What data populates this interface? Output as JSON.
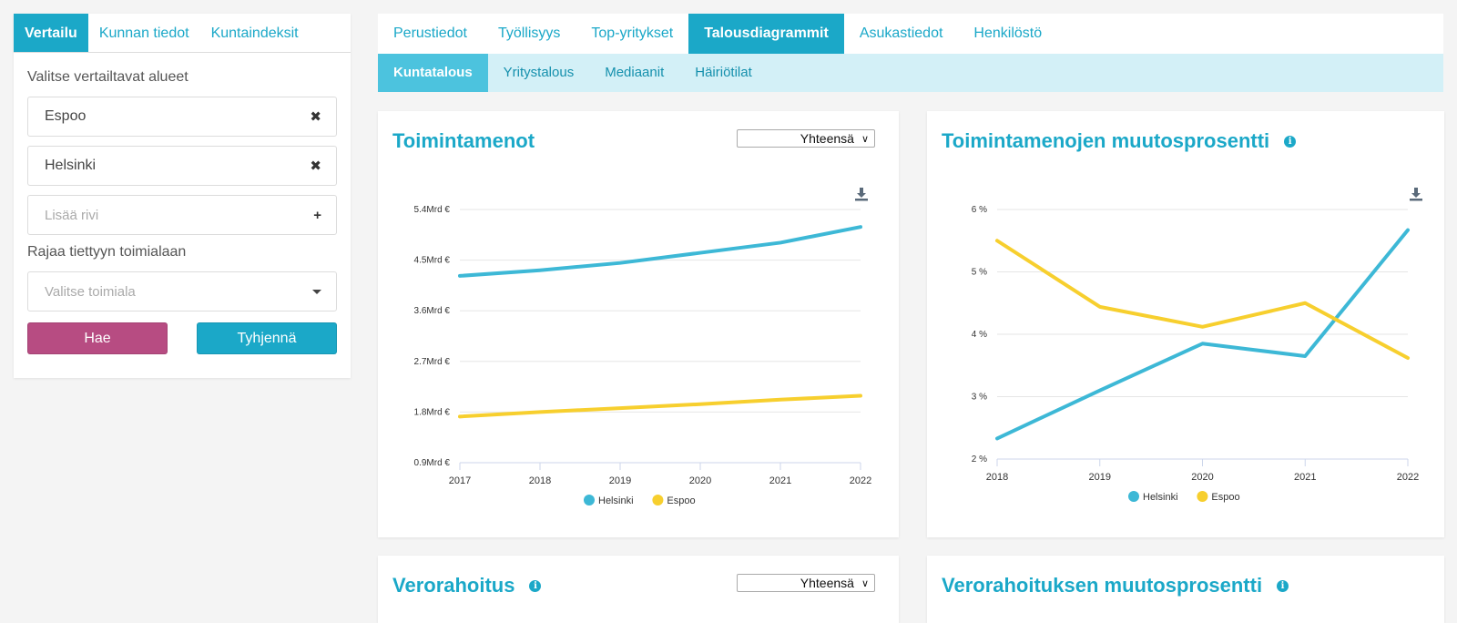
{
  "left_panel": {
    "tabs": [
      {
        "label": "Vertailu",
        "active": true
      },
      {
        "label": "Kunnan tiedot",
        "active": false
      },
      {
        "label": "Kuntaindeksit",
        "active": false
      }
    ],
    "areas_label": "Valitse vertailtavat alueet",
    "areas": [
      "Espoo",
      "Helsinki"
    ],
    "add_placeholder": "Lisää rivi",
    "industry_label": "Rajaa tiettyyn toimialaan",
    "industry_placeholder": "Valitse toimiala",
    "search_button": "Hae",
    "clear_button": "Tyhjennä"
  },
  "main_tabs": [
    {
      "label": "Perustiedot",
      "active": false
    },
    {
      "label": "Työllisyys",
      "active": false
    },
    {
      "label": "Top-yritykset",
      "active": false
    },
    {
      "label": "Talousdiagrammit",
      "active": true
    },
    {
      "label": "Asukastiedot",
      "active": false
    },
    {
      "label": "Henkilöstö",
      "active": false
    }
  ],
  "sub_tabs": [
    {
      "label": "Kuntatalous",
      "active": true
    },
    {
      "label": "Yritystalous",
      "active": false
    },
    {
      "label": "Mediaanit",
      "active": false
    },
    {
      "label": "Häiriötilat",
      "active": false
    }
  ],
  "cards": {
    "toimintamenot": {
      "title": "Toimintamenot",
      "dropdown": "Yhteensä"
    },
    "muutos": {
      "title": "Toimintamenojen muutosprosentti"
    },
    "verorahoitus": {
      "title": "Verorahoitus",
      "dropdown": "Yhteensä"
    },
    "verorahoitus_muutos": {
      "title": "Verorahoituksen muutosprosentti"
    }
  },
  "colors": {
    "accent": "#1ba8c8",
    "helsinki": "#3db8d6",
    "espoo": "#f7cf2e",
    "search_button": "#b74c82"
  },
  "chart_data": [
    {
      "type": "line",
      "x": [
        "2017",
        "2018",
        "2019",
        "2020",
        "2021",
        "2022"
      ],
      "yticks": [
        "0.9Mrd €",
        "1.8Mrd €",
        "2.7Mrd €",
        "3.6Mrd €",
        "4.5Mrd €",
        "5.4Mrd €"
      ],
      "ylim": [
        0.9,
        5.4
      ],
      "unit": "Mrd €",
      "series": [
        {
          "name": "Helsinki",
          "values": [
            4.22,
            4.32,
            4.45,
            4.63,
            4.81,
            5.09
          ]
        },
        {
          "name": "Espoo",
          "values": [
            1.72,
            1.8,
            1.87,
            1.94,
            2.02,
            2.09
          ]
        }
      ],
      "legend": "bottom",
      "grid": true
    },
    {
      "type": "line",
      "x": [
        "2018",
        "2019",
        "2020",
        "2021",
        "2022"
      ],
      "yticks": [
        "2 %",
        "3 %",
        "4 %",
        "5 %",
        "6 %"
      ],
      "ylim": [
        2,
        6
      ],
      "unit": "%",
      "series": [
        {
          "name": "Helsinki",
          "values": [
            2.33,
            3.1,
            3.85,
            3.65,
            5.67
          ]
        },
        {
          "name": "Espoo",
          "values": [
            5.5,
            4.44,
            4.12,
            4.5,
            3.62
          ]
        }
      ],
      "legend": "bottom",
      "grid": true
    }
  ]
}
